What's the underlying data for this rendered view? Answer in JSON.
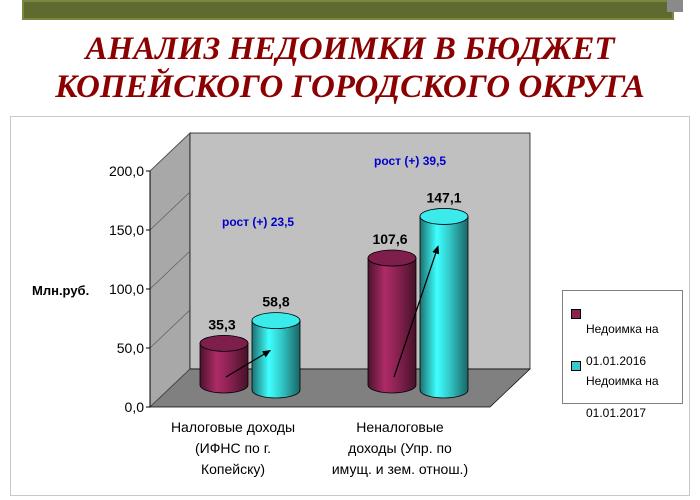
{
  "slide": {
    "title_line1": "АНАЛИЗ НЕДОИМКИ В БЮДЖЕТ",
    "title_line2": "КОПЕЙСКОГО ГОРОДСКОГО ОКРУГА"
  },
  "colors": {
    "title": "#8b0000",
    "series1": "#8b2252",
    "series2": "#33cccc",
    "wall": "#c0c0c0",
    "floor": "#808080",
    "growth_text": "#0000cc"
  },
  "chart_data": {
    "type": "bar",
    "style": "3d-cylinder",
    "ylabel": "Млн.руб.",
    "ylim": [
      0,
      200
    ],
    "yticks": [
      "0,0",
      "50,0",
      "100,0",
      "150,0",
      "200,0"
    ],
    "categories": [
      [
        "Налоговые доходы",
        "(ИФНС по г.",
        "Копейску)"
      ],
      [
        "Неналоговые",
        "доходы (Упр. по",
        "имущ. и зем. отнош.)"
      ]
    ],
    "series": [
      {
        "name": "Недоимка на 01.01.2016",
        "values": [
          35.3,
          107.6
        ],
        "labels": [
          "35,3",
          "107,6"
        ]
      },
      {
        "name": "Недоимка на 01.01.2017",
        "values": [
          58.8,
          147.1
        ],
        "labels": [
          "58,8",
          "147,1"
        ]
      }
    ],
    "annotations": [
      "рост (+) 23,5",
      "рост (+) 39,5"
    ],
    "legend": {
      "position": "right",
      "entries": [
        [
          "Недоимка на",
          "01.01.2016"
        ],
        [
          "Недоимка на",
          "01.01.2017"
        ]
      ]
    }
  }
}
